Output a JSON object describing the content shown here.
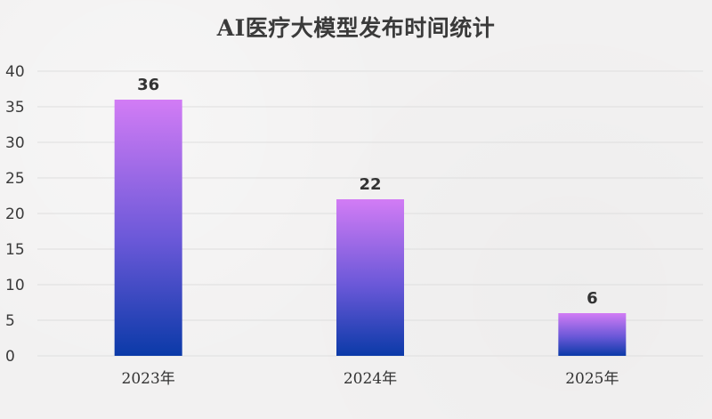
{
  "chart_data": {
    "type": "bar",
    "title": "AI医疗大模型发布时间统计",
    "categories": [
      "2023年",
      "2024年",
      "2025年"
    ],
    "values": [
      36,
      22,
      6
    ],
    "data_labels": [
      "36",
      "22",
      "6"
    ],
    "ylim": [
      0,
      40
    ],
    "yticks": [
      0,
      5,
      10,
      15,
      20,
      25,
      30,
      35,
      40
    ],
    "xlabel": "",
    "ylabel": "",
    "grid": true,
    "legend": "none",
    "colors": {
      "bar_top": "#d27cf5",
      "bar_mid": "#6a58d8",
      "bar_bottom": "#0b3aa8",
      "grid": "#dedede",
      "text": "#333333"
    }
  }
}
